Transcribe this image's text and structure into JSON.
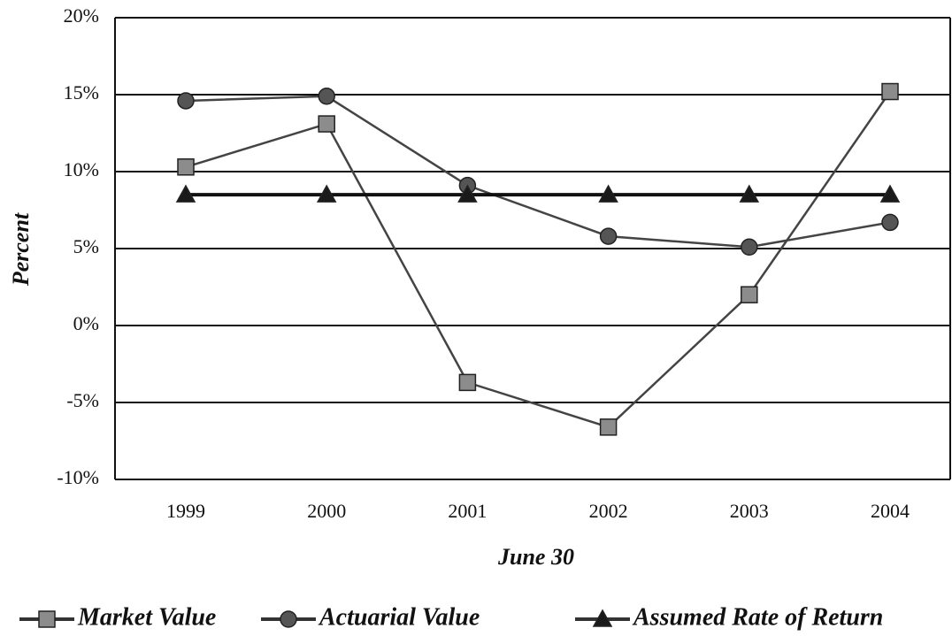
{
  "chart_data": {
    "type": "line",
    "x_label": "June 30",
    "y_label": "Percent",
    "categories": [
      "1999",
      "2000",
      "2001",
      "2002",
      "2003",
      "2004"
    ],
    "series": [
      {
        "name": "Market Value",
        "color": "#8c8c8c",
        "marker": "square",
        "values": [
          10.3,
          13.1,
          -3.7,
          -6.6,
          2.0,
          15.2
        ]
      },
      {
        "name": "Actuarial Value",
        "color": "#555555",
        "marker": "circle",
        "values": [
          14.6,
          14.9,
          9.1,
          5.8,
          5.1,
          6.7
        ]
      },
      {
        "name": "Assumed Rate of Return",
        "color": "#1a1a1a",
        "marker": "triangle",
        "values": [
          8.5,
          8.5,
          8.5,
          8.5,
          8.5,
          8.5
        ]
      }
    ],
    "ylim": [
      -10,
      20
    ],
    "yticks": [
      {
        "value": -10,
        "label": "-10%"
      },
      {
        "value": -5,
        "label": "-5%"
      },
      {
        "value": 0,
        "label": "0%"
      },
      {
        "value": 5,
        "label": "5%"
      },
      {
        "value": 10,
        "label": "10%"
      },
      {
        "value": 15,
        "label": "15%"
      },
      {
        "value": 20,
        "label": "20%"
      }
    ],
    "grid": true,
    "legend": "bottom"
  }
}
